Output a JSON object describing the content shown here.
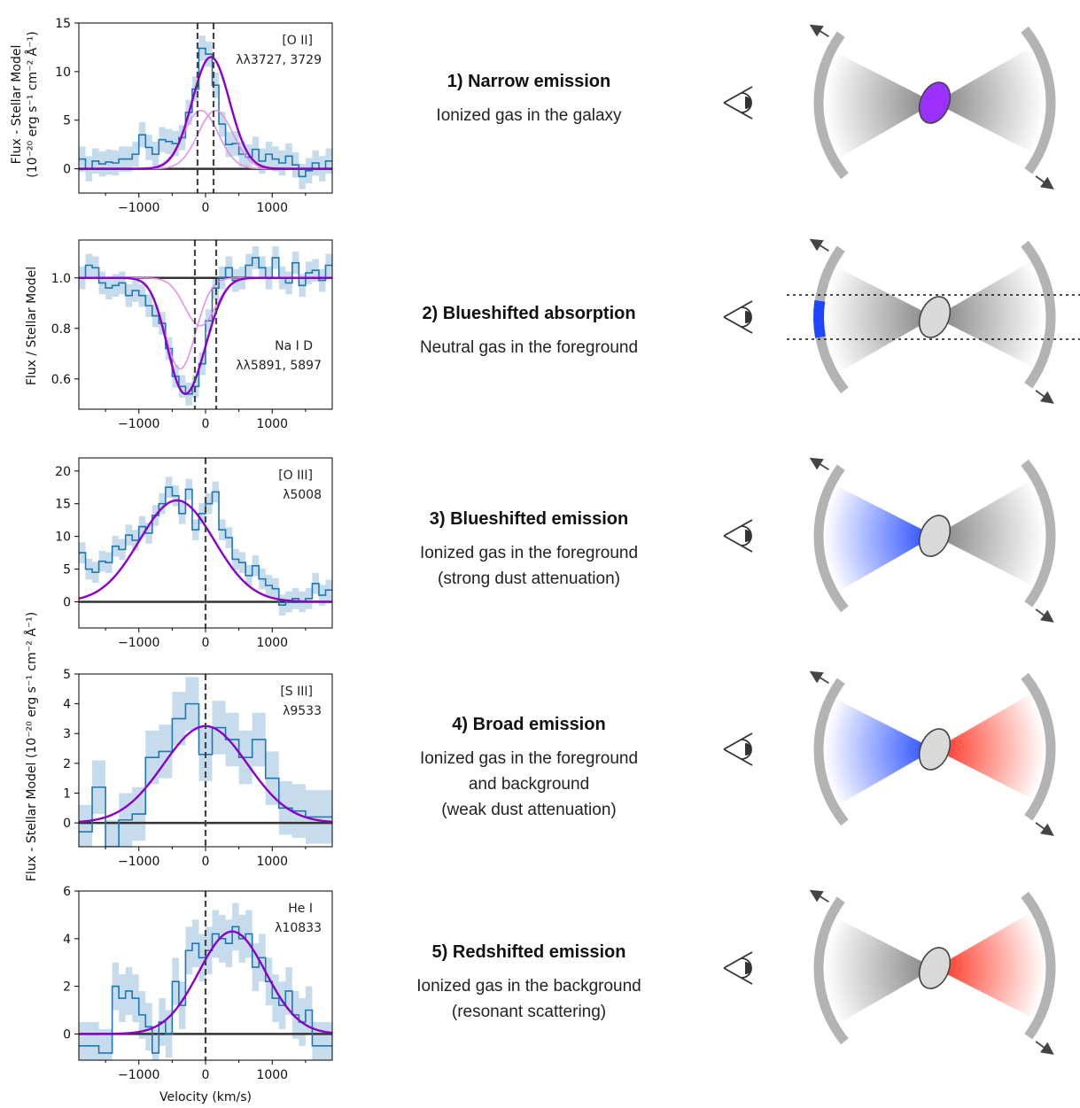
{
  "figure": {
    "ylabel_top": "Flux - Stellar Model",
    "ylabel_top_units": "(10⁻²⁰ erg s⁻¹ cm⁻² Å⁻¹)",
    "ylabel_na": "Flux / Stellar Model",
    "ylabel_shared": "Flux - Stellar Model  (10⁻²⁰ erg s⁻¹ cm⁻² Å⁻¹)",
    "xlabel": "Velocity (km/s)"
  },
  "captions": [
    {
      "title": "1) Narrow emission",
      "lines": [
        "Ionized gas in the galaxy"
      ]
    },
    {
      "title": "2) Blueshifted absorption",
      "lines": [
        "Neutral gas in the foreground"
      ]
    },
    {
      "title": "3) Blueshifted emission",
      "lines": [
        "Ionized gas in the foreground",
        "(strong dust attenuation)"
      ]
    },
    {
      "title": "4) Broad emission",
      "lines": [
        "Ionized gas in the foreground",
        "and background",
        "(weak dust attenuation)"
      ]
    },
    {
      "title": "5) Redshifted emission",
      "lines": [
        "Ionized gas in the background",
        "(resonant scattering)"
      ]
    }
  ],
  "colors": {
    "data_step": "#1f77b4",
    "uncertainty_band": "#c6dcec",
    "fit_total": "#8a00c8",
    "fit_component": "#e58ae8",
    "zero_line": "#333333",
    "cone_gray": "#808080",
    "shell_gray": "#b3b3b3",
    "blue_gas": "#1f46ff",
    "red_gas": "#ff2b1a",
    "narrow_emission_core": "#9b30ff",
    "galaxy_core": "#d9d9d9"
  },
  "icons": [
    "eye-icon",
    "outflow-arrow-icon"
  ],
  "chart_data": [
    {
      "type": "line",
      "line": "[O II]",
      "wavelength": "λλ3727, 3729",
      "xlim": [
        -1900,
        1900
      ],
      "ylim": [
        -2.5,
        15
      ],
      "xticks": [
        -1000,
        0,
        1000
      ],
      "yticks": [
        0,
        5,
        10,
        15
      ],
      "vlines": [
        -120,
        120
      ],
      "step_x": [
        -1900,
        -1800,
        -1700,
        -1600,
        -1500,
        -1400,
        -1300,
        -1200,
        -1100,
        -1000,
        -900,
        -800,
        -700,
        -600,
        -500,
        -400,
        -300,
        -200,
        -100,
        0,
        100,
        200,
        300,
        400,
        500,
        600,
        700,
        800,
        900,
        1000,
        1100,
        1200,
        1300,
        1400,
        1500,
        1600,
        1700,
        1800
      ],
      "step_y": [
        1.0,
        0,
        0.8,
        0.5,
        0.7,
        0.6,
        1.0,
        1.0,
        1.5,
        3.5,
        2.2,
        1.5,
        3.0,
        2.8,
        2.6,
        3.2,
        5.8,
        8.2,
        12.4,
        11.8,
        8.6,
        4.6,
        2.5,
        2.6,
        1.5,
        1.2,
        2.0,
        0.8,
        1.5,
        1.0,
        0.6,
        1.3,
        0.4,
        -0.8,
        -0.2,
        0.6,
        0.0,
        0.8
      ],
      "band_halfwidth": 1.3,
      "fit_total": {
        "amp": 11.5,
        "center": 80,
        "sigma": 280
      },
      "fit_components": [
        {
          "amp": 6.0,
          "center": -70,
          "sigma": 260
        },
        {
          "amp": 6.0,
          "center": 150,
          "sigma": 260
        }
      ],
      "baseline": 0
    },
    {
      "type": "line",
      "line": "Na I D",
      "wavelength": "λλ5891, 5897",
      "xlim": [
        -1900,
        1900
      ],
      "ylim": [
        0.48,
        1.15
      ],
      "xticks": [
        -1000,
        0,
        1000
      ],
      "yticks": [
        0.6,
        0.8,
        1.0
      ],
      "ytick_labels": [
        "0.6",
        "0.8",
        "1.0"
      ],
      "vlines": [
        -160,
        160
      ],
      "step_x": [
        -1900,
        -1800,
        -1700,
        -1600,
        -1500,
        -1400,
        -1300,
        -1200,
        -1100,
        -1000,
        -900,
        -800,
        -700,
        -600,
        -500,
        -400,
        -300,
        -200,
        -100,
        0,
        100,
        200,
        300,
        400,
        500,
        600,
        700,
        800,
        900,
        1000,
        1100,
        1200,
        1300,
        1400,
        1500,
        1600,
        1700,
        1800
      ],
      "step_y": [
        1.0,
        1.05,
        1.04,
        0.98,
        0.96,
        0.97,
        0.98,
        0.93,
        0.95,
        0.93,
        0.89,
        0.85,
        0.82,
        0.72,
        0.61,
        0.57,
        0.54,
        0.57,
        0.66,
        0.83,
        0.96,
        1.0,
        1.04,
        0.99,
        1.0,
        1.05,
        1.08,
        1.04,
        1.0,
        1.08,
        1.0,
        0.98,
        1.06,
        0.97,
        1.02,
        1.03,
        0.99,
        1.05
      ],
      "band_halfwidth": 0.045,
      "fit_total_absorption": [
        {
          "depth": 0.36,
          "center": -380,
          "sigma": 230
        },
        {
          "depth": 0.19,
          "center": -80,
          "sigma": 230
        }
      ],
      "fit_components_absorption": [
        {
          "depth": 0.36,
          "center": -380,
          "sigma": 230
        },
        {
          "depth": 0.19,
          "center": -80,
          "sigma": 230
        }
      ],
      "baseline": 1.0
    },
    {
      "type": "line",
      "line": "[O III]",
      "wavelength": "λ5008",
      "xlim": [
        -1900,
        1900
      ],
      "ylim": [
        -4,
        22
      ],
      "xticks": [
        -1000,
        0,
        1000
      ],
      "yticks": [
        0,
        5,
        10,
        15,
        20
      ],
      "vlines": [
        0
      ],
      "step_x": [
        -1900,
        -1800,
        -1700,
        -1600,
        -1500,
        -1400,
        -1300,
        -1200,
        -1100,
        -1000,
        -900,
        -800,
        -700,
        -600,
        -500,
        -400,
        -300,
        -200,
        -100,
        0,
        100,
        200,
        300,
        400,
        500,
        600,
        700,
        800,
        900,
        1000,
        1100,
        1200,
        1300,
        1400,
        1500,
        1600,
        1700,
        1800
      ],
      "step_y": [
        7.5,
        5.0,
        4.5,
        6.2,
        6.0,
        8.5,
        8.0,
        10.2,
        9.4,
        11.5,
        10.5,
        13.2,
        15.0,
        17.5,
        16.2,
        13.5,
        17.2,
        11.0,
        13.5,
        15.0,
        16.8,
        11.0,
        9.8,
        6.5,
        6.0,
        4.0,
        5.5,
        3.5,
        2.5,
        2.0,
        -0.5,
        0.0,
        0.5,
        0.0,
        0.5,
        2.8,
        1.0,
        1.8
      ],
      "band_halfwidth": 1.6,
      "fit_total": {
        "amp": 15.5,
        "center": -430,
        "sigma": 560
      },
      "baseline": 0
    },
    {
      "type": "line",
      "line": "[S III]",
      "wavelength": "λ9533",
      "xlim": [
        -1900,
        1900
      ],
      "ylim": [
        -0.8,
        5
      ],
      "xticks": [
        -1000,
        0,
        1000
      ],
      "yticks": [
        0,
        1,
        2,
        3,
        4,
        5
      ],
      "vlines": [
        0
      ],
      "step_x": [
        -1900,
        -1700,
        -1500,
        -1300,
        -1100,
        -900,
        -700,
        -500,
        -300,
        -100,
        100,
        300,
        500,
        700,
        900,
        1100,
        1300,
        1500,
        1700
      ],
      "step_y": [
        -0.3,
        1.2,
        -0.8,
        0.1,
        0.3,
        2.2,
        2.4,
        3.5,
        4.0,
        2.3,
        3.2,
        2.8,
        2.2,
        2.8,
        1.5,
        0.5,
        0.4,
        0.2,
        0.2
      ],
      "band_halfwidth": 0.9,
      "fit_total": {
        "amp": 3.25,
        "center": 0,
        "sigma": 630
      },
      "baseline": 0
    },
    {
      "type": "line",
      "line": "He I",
      "wavelength": "λ10833",
      "xlim": [
        -1900,
        1900
      ],
      "ylim": [
        -1.1,
        6
      ],
      "xticks": [
        -1000,
        0,
        1000
      ],
      "yticks": [
        0,
        2,
        4,
        6
      ],
      "vlines": [
        0
      ],
      "step_x": [
        -1900,
        -1800,
        -1700,
        -1600,
        -1500,
        -1400,
        -1300,
        -1200,
        -1100,
        -1000,
        -900,
        -800,
        -700,
        -600,
        -500,
        -400,
        -300,
        -200,
        -100,
        0,
        100,
        200,
        300,
        400,
        500,
        600,
        700,
        800,
        900,
        1000,
        1100,
        1200,
        1300,
        1400,
        1500,
        1600,
        1700,
        1800
      ],
      "step_y": [
        -0.5,
        -0.5,
        -0.5,
        -0.8,
        -0.8,
        2.0,
        1.5,
        1.8,
        1.5,
        0.8,
        0.3,
        -0.8,
        0.5,
        0.0,
        2.2,
        1.2,
        3.5,
        3.8,
        3.2,
        3.5,
        4.2,
        4.0,
        3.8,
        4.5,
        4.0,
        4.2,
        2.8,
        3.2,
        2.2,
        1.5,
        1.2,
        1.8,
        0.8,
        0.5,
        1.0,
        -0.5,
        -0.5,
        -0.5
      ],
      "band_halfwidth": 1.0,
      "fit_total": {
        "amp": 4.3,
        "center": 400,
        "sigma": 500
      },
      "baseline": 0
    }
  ],
  "cartoons": [
    {
      "scenario": "narrow",
      "near_cone": "gray",
      "far_cone": "gray",
      "core": "purple"
    },
    {
      "scenario": "absorption",
      "near_cone": "gray",
      "far_cone": "gray",
      "core": "gray",
      "shell_band": "blue",
      "sightlines": true
    },
    {
      "scenario": "blueshifted",
      "near_cone": "blue",
      "far_cone": "gray",
      "core": "gray"
    },
    {
      "scenario": "broad",
      "near_cone": "blue",
      "far_cone": "red",
      "core": "gray"
    },
    {
      "scenario": "redshifted",
      "near_cone": "gray",
      "far_cone": "red",
      "core": "gray"
    }
  ]
}
